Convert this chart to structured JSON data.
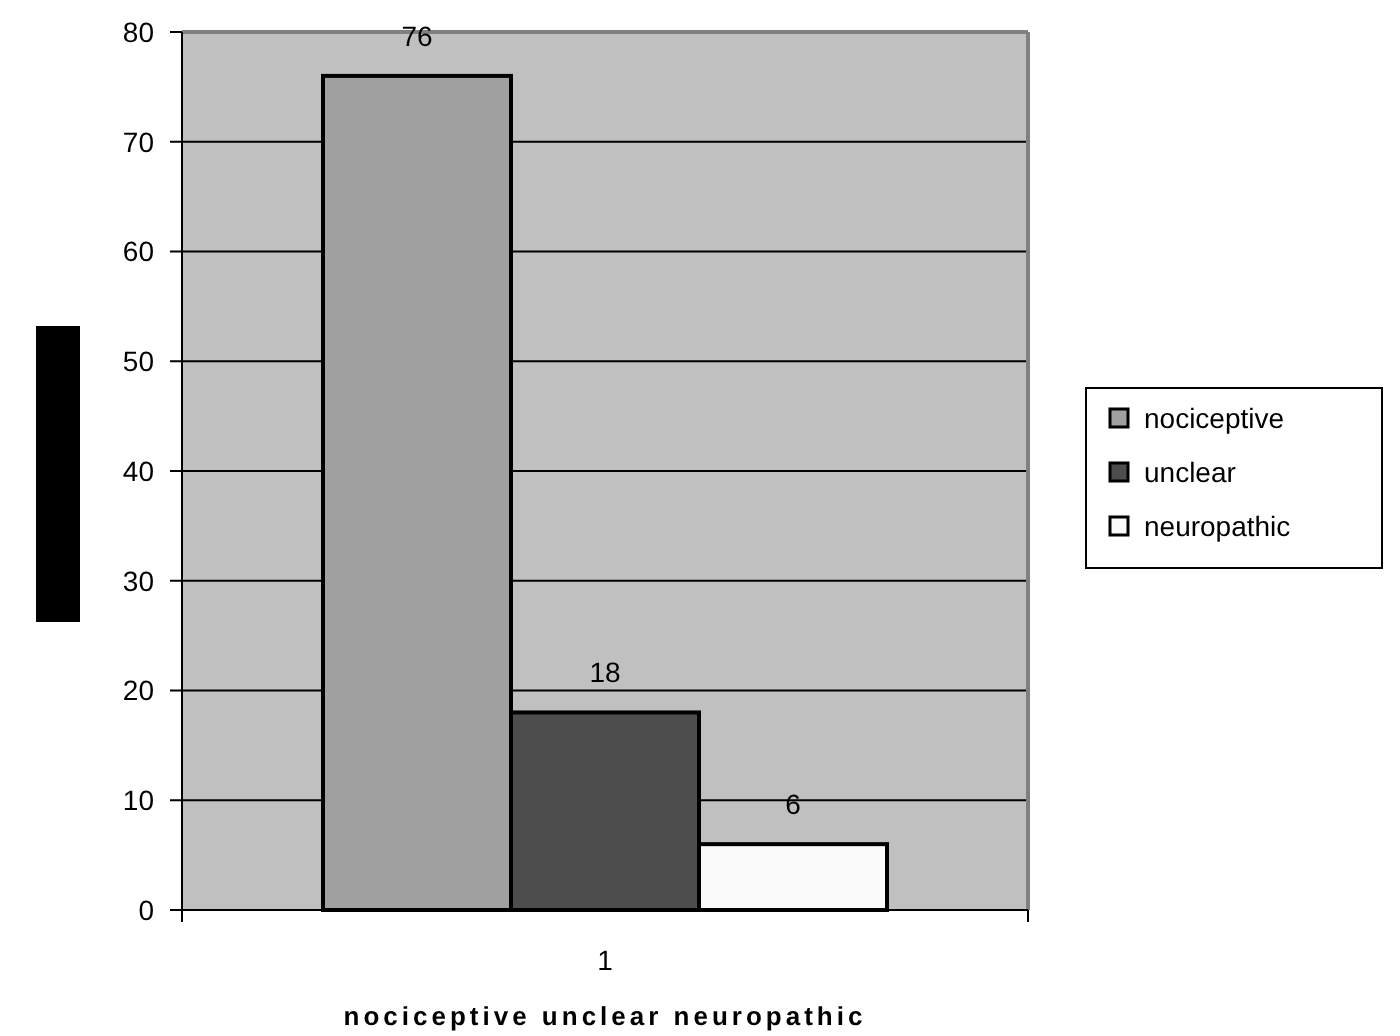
{
  "chart_data": {
    "type": "bar",
    "xlabel": "nociceptive unclear neuropathic",
    "categories": [
      "1"
    ],
    "series": [
      {
        "name": "nociceptive",
        "color": "#a0a0a0",
        "values": [
          76
        ]
      },
      {
        "name": "unclear",
        "color": "#4d4d4d",
        "values": [
          18
        ]
      },
      {
        "name": "neuropathic",
        "color": "#fafafa",
        "values": [
          6
        ]
      }
    ],
    "ylim": [
      0,
      80
    ],
    "yticks": [
      0,
      10,
      20,
      30,
      40,
      50,
      60,
      70,
      80
    ],
    "grid": "y",
    "legend": "right",
    "data_labels": true
  }
}
